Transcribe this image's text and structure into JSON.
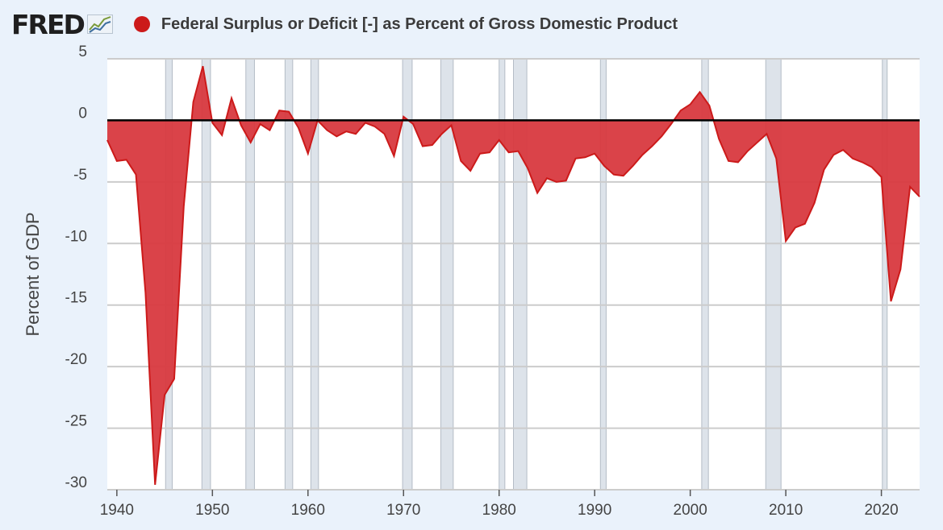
{
  "header": {
    "logo_text": "FRED",
    "logo_icon": "line-chart-icon",
    "title": "Federal Surplus or Deficit [-] as Percent of Gross Domestic Product"
  },
  "colors": {
    "series": "#cc1a1a",
    "fill": "#d8393f",
    "recession": "#dde3ea",
    "zero_line": "#000000",
    "background": "#eaf2fb"
  },
  "chart_data": {
    "type": "area",
    "title": "Federal Surplus or Deficit [-] as Percent of Gross Domestic Product",
    "xlabel": "",
    "ylabel": "Percent of GDP",
    "xlim": [
      1939,
      2024
    ],
    "ylim": [
      -30,
      5
    ],
    "x_ticks": [
      "1940",
      "1950",
      "1960",
      "1970",
      "1980",
      "1990",
      "2000",
      "2010",
      "2020"
    ],
    "y_ticks": [
      "5",
      "0",
      "-5",
      "-10",
      "-15",
      "-20",
      "-25",
      "-30"
    ],
    "grid": true,
    "series": [
      {
        "x": [
          1939,
          1940,
          1941,
          1942,
          1943,
          1944,
          1945,
          1946,
          1947,
          1948,
          1949,
          1950,
          1951,
          1952,
          1953,
          1954,
          1955,
          1956,
          1957,
          1958,
          1959,
          1960,
          1961,
          1962,
          1963,
          1964,
          1965,
          1966,
          1967,
          1968,
          1969,
          1970,
          1971,
          1972,
          1973,
          1974,
          1975,
          1976,
          1977,
          1978,
          1979,
          1980,
          1981,
          1982,
          1983,
          1984,
          1985,
          1986,
          1987,
          1988,
          1989,
          1990,
          1991,
          1992,
          1993,
          1994,
          1995,
          1996,
          1997,
          1998,
          1999,
          2000,
          2001,
          2002,
          2003,
          2004,
          2005,
          2006,
          2007,
          2008,
          2009,
          2010,
          2011,
          2012,
          2013,
          2014,
          2015,
          2016,
          2017,
          2018,
          2019,
          2020,
          2021,
          2022,
          2023,
          2024
        ],
        "values": [
          -1.6,
          -3.3,
          -3.2,
          -4.4,
          -14.0,
          -29.6,
          -22.3,
          -21.0,
          -7.0,
          1.5,
          4.4,
          -0.2,
          -1.2,
          1.8,
          -0.4,
          -1.8,
          -0.3,
          -0.8,
          0.8,
          0.7,
          -0.6,
          -2.7,
          0.0,
          -0.8,
          -1.3,
          -0.9,
          -1.1,
          -0.2,
          -0.5,
          -1.1,
          -2.9,
          0.3,
          -0.3,
          -2.1,
          -2.0,
          -1.1,
          -0.4,
          -3.3,
          -4.1,
          -2.7,
          -2.6,
          -1.6,
          -2.6,
          -2.5,
          -3.9,
          -5.9,
          -4.7,
          -5.0,
          -4.9,
          -3.1,
          -3.0,
          -2.7,
          -3.7,
          -4.4,
          -4.5,
          -3.7,
          -2.8,
          -2.1,
          -1.3,
          -0.3,
          0.8,
          1.3,
          2.3,
          1.2,
          -1.5,
          -3.3,
          -3.4,
          -2.5,
          -1.8,
          -1.1,
          -3.1,
          -9.8,
          -8.7,
          -8.4,
          -6.7,
          -4.0,
          -2.8,
          -2.4,
          -3.1,
          -3.4,
          -3.8,
          -4.6,
          -14.7,
          -12.1,
          -5.4,
          -6.2
        ]
      }
    ],
    "recessions": [
      [
        1945.1,
        1945.8
      ],
      [
        1948.9,
        1949.8
      ],
      [
        1953.5,
        1954.4
      ],
      [
        1957.6,
        1958.4
      ],
      [
        1960.3,
        1961.1
      ],
      [
        1969.9,
        1970.9
      ],
      [
        1973.9,
        1975.2
      ],
      [
        1980.0,
        1980.6
      ],
      [
        1981.5,
        1982.9
      ],
      [
        1990.6,
        1991.2
      ],
      [
        2001.2,
        2001.9
      ],
      [
        2007.9,
        2009.5
      ],
      [
        2020.1,
        2020.3
      ]
    ]
  }
}
